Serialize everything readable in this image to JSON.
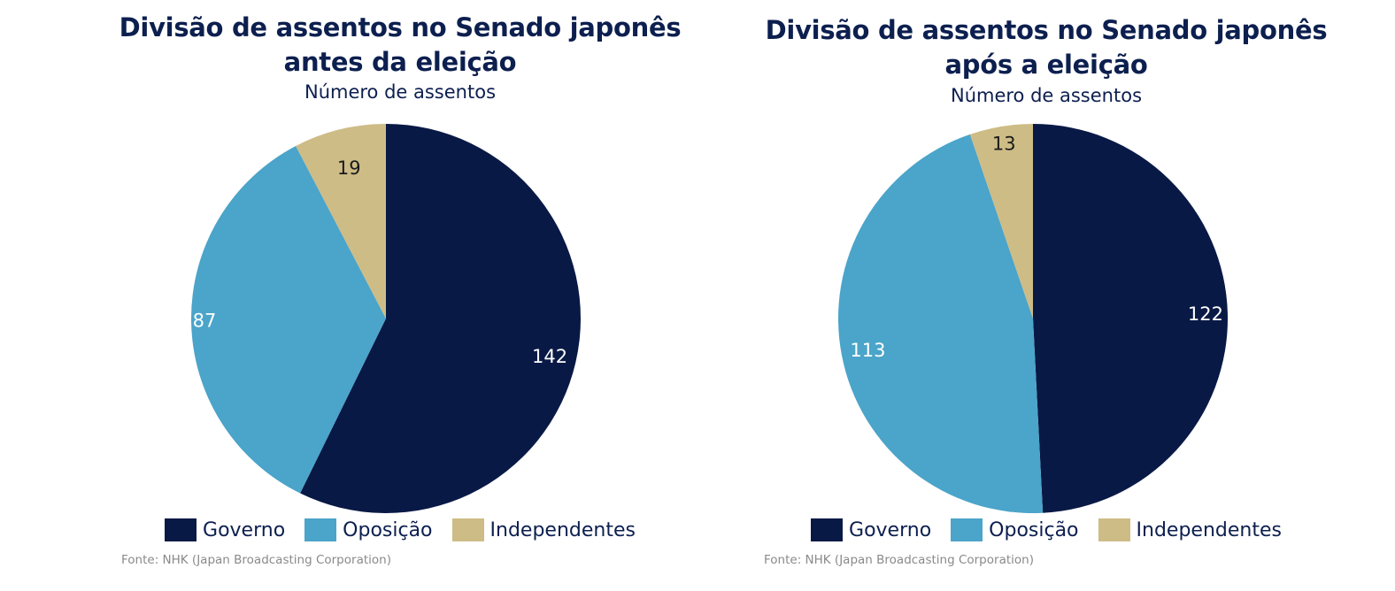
{
  "chart_data": [
    {
      "type": "pie",
      "title_lines": [
        "Divisão de assentos no Senado japonês",
        "antes da eleição"
      ],
      "subtitle": "Número de assentos",
      "categories": [
        "Governo",
        "Oposição",
        "Independentes"
      ],
      "values": [
        142,
        87,
        19
      ],
      "colors": [
        "#091946",
        "#4ba4c9",
        "#cdbc86"
      ],
      "legend_position": "bottom",
      "source": "Fonte: NHK (Japan Broadcasting Corporation)"
    },
    {
      "type": "pie",
      "title_lines": [
        "Divisão de assentos no Senado japonês",
        "após a eleição"
      ],
      "subtitle": "Número de assentos",
      "categories": [
        "Governo",
        "Oposição",
        "Independentes"
      ],
      "values": [
        122,
        113,
        13
      ],
      "colors": [
        "#091946",
        "#4ba4c9",
        "#cdbc86"
      ],
      "legend_position": "bottom",
      "source": "Fonte: NHK (Japan  Broadcasting Corporation)"
    }
  ]
}
